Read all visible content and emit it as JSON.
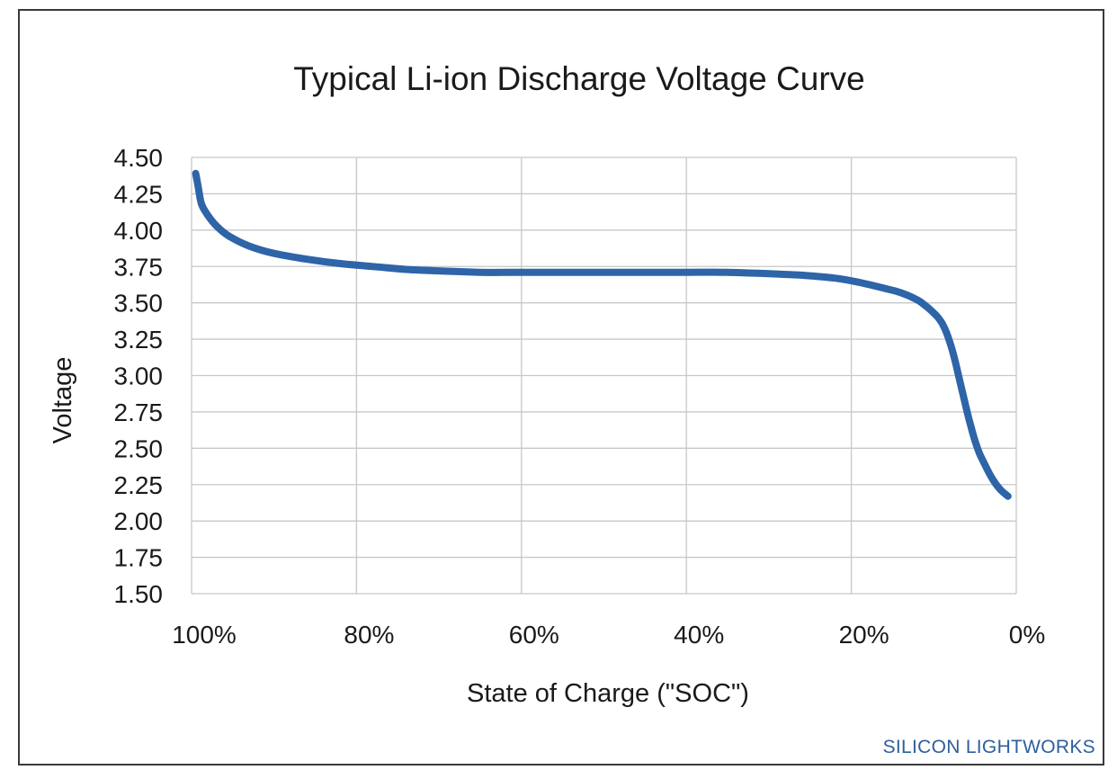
{
  "chart_data": {
    "type": "line",
    "title": "Typical Li-ion Discharge Voltage Curve",
    "xlabel": "State of Charge (\"SOC\")",
    "ylabel": "Voltage",
    "x_ticks": [
      "100%",
      "80%",
      "60%",
      "40%",
      "20%",
      "0%"
    ],
    "x_tick_values": [
      100,
      80,
      60,
      40,
      20,
      0
    ],
    "y_ticks": [
      "4.50",
      "4.25",
      "4.00",
      "3.75",
      "3.50",
      "3.25",
      "3.00",
      "2.75",
      "2.50",
      "2.25",
      "2.00",
      "1.75",
      "1.50"
    ],
    "xlim": [
      100,
      0
    ],
    "ylim": [
      1.5,
      4.5
    ],
    "grid": true,
    "line_color": "#2e64a8",
    "series": [
      {
        "name": "Li-ion discharge",
        "x": [
          99.5,
          99.2,
          98.8,
          98,
          97,
          95.5,
          93,
          90,
          86,
          82,
          78,
          74,
          70,
          65,
          60,
          55,
          50,
          45,
          40,
          35,
          30,
          26,
          22,
          19,
          16,
          14,
          12,
          11,
          10,
          9.5,
          9,
          8.5,
          8,
          7.5,
          7,
          6.5,
          6,
          5.5,
          5,
          4.5,
          4,
          3,
          2,
          1
        ],
        "y": [
          4.39,
          4.3,
          4.18,
          4.1,
          4.03,
          3.96,
          3.89,
          3.84,
          3.8,
          3.77,
          3.75,
          3.73,
          3.72,
          3.71,
          3.71,
          3.71,
          3.71,
          3.71,
          3.71,
          3.71,
          3.7,
          3.69,
          3.67,
          3.64,
          3.6,
          3.57,
          3.52,
          3.48,
          3.43,
          3.4,
          3.36,
          3.3,
          3.22,
          3.12,
          3.0,
          2.88,
          2.76,
          2.65,
          2.55,
          2.47,
          2.41,
          2.3,
          2.22,
          2.17
        ]
      }
    ]
  },
  "brand": "SILICON LIGHTWORKS"
}
